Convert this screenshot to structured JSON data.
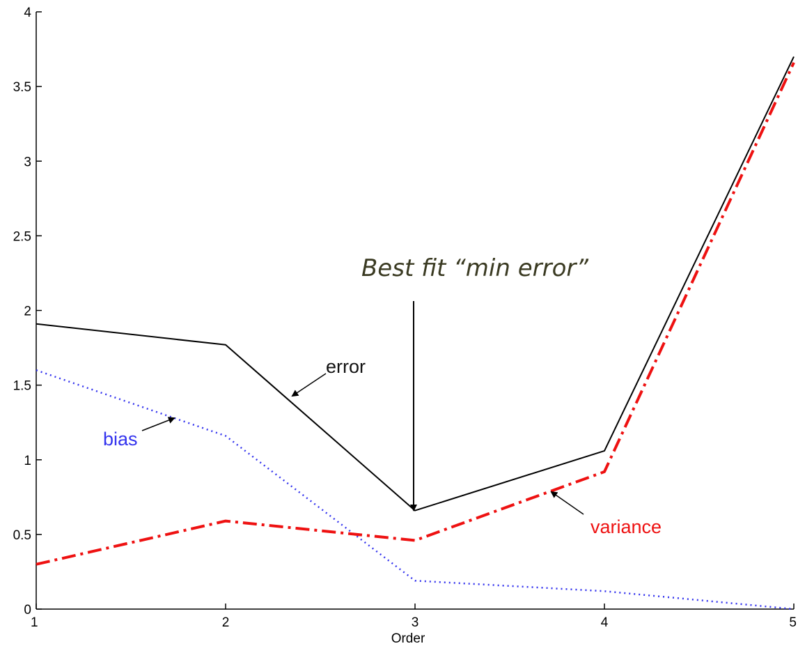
{
  "chart_data": {
    "type": "line",
    "x": [
      1,
      2,
      3,
      4,
      5
    ],
    "xlabel": "Order",
    "ylabel": "",
    "xlim": [
      1,
      5
    ],
    "ylim": [
      0,
      4
    ],
    "x_ticks": [
      "1",
      "2",
      "3",
      "4",
      "5"
    ],
    "y_ticks": [
      "0",
      "0.5",
      "1",
      "1.5",
      "2",
      "2.5",
      "3",
      "3.5",
      "4"
    ],
    "grid": false,
    "series": [
      {
        "name": "error",
        "values": [
          1.91,
          1.77,
          0.66,
          1.06,
          3.7
        ],
        "color": "#000000",
        "style": "solid"
      },
      {
        "name": "bias",
        "values": [
          1.6,
          1.16,
          0.19,
          0.12,
          0.0
        ],
        "color": "#3333ee",
        "style": "dotted"
      },
      {
        "name": "variance",
        "values": [
          0.3,
          0.59,
          0.46,
          0.92,
          3.66
        ],
        "color": "#ee1111",
        "style": "dash-dot"
      }
    ],
    "annotations": {
      "error_label": "error",
      "bias_label": "bias",
      "variance_label": "variance",
      "callout": "Best fit “min error”"
    }
  }
}
